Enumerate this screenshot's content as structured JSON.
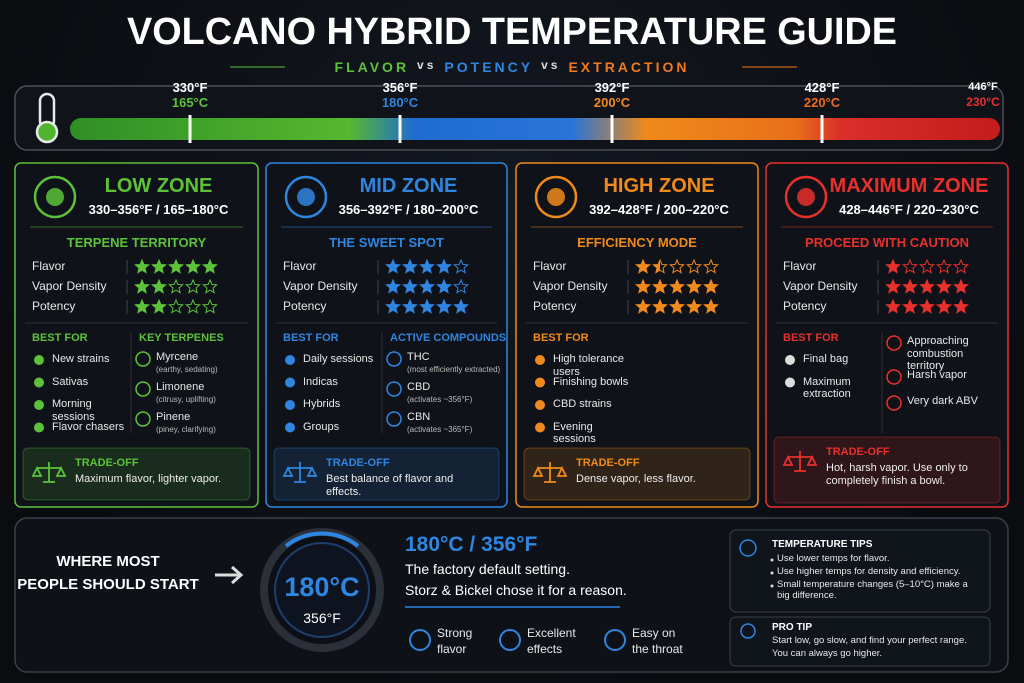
{
  "header": {
    "title": "VOLCANO HYBRID TEMPERATURE GUIDE",
    "subtitle": [
      "FLAVOR",
      "vs",
      "POTENCY",
      "vs",
      "EXTRACTION"
    ]
  },
  "scale": [
    {
      "f": "330°F",
      "c": "165°C"
    },
    {
      "f": "356°F",
      "c": "180°C"
    },
    {
      "f": "392°F",
      "c": "200°C"
    },
    {
      "f": "428°F",
      "c": "220°C"
    },
    {
      "f": "446°F",
      "c": "230°C"
    }
  ],
  "zones": [
    {
      "name": "LOW ZONE",
      "range": "330–356°F / 165–180°C",
      "tagline": "TERPENE TERRITORY",
      "color": "#5cc23a",
      "ratings": [
        {
          "label": "Flavor",
          "stars": 5
        },
        {
          "label": "Vapor Density",
          "stars": 2
        },
        {
          "label": "Potency",
          "stars": 2
        }
      ],
      "best_for_title": "BEST FOR",
      "best_for": [
        "New strains",
        "Sativas",
        "Morning sessions",
        "Flavor chasers"
      ],
      "second_title": "KEY TERPENES",
      "second": [
        {
          "name": "Myrcene",
          "note": "(earthy, sedating)"
        },
        {
          "name": "Limonene",
          "note": "(citrusy, uplifting)"
        },
        {
          "name": "Pinene",
          "note": "(piney, clarifying)"
        }
      ],
      "tradeoff_title": "TRADE-OFF",
      "tradeoff": "Maximum flavor, lighter vapor."
    },
    {
      "name": "MID ZONE",
      "range": "356–392°F / 180–200°C",
      "tagline": "THE SWEET SPOT",
      "color": "#2f86e0",
      "ratings": [
        {
          "label": "Flavor",
          "stars": 4
        },
        {
          "label": "Vapor Density",
          "stars": 4
        },
        {
          "label": "Potency",
          "stars": 5
        }
      ],
      "best_for_title": "BEST FOR",
      "best_for": [
        "Daily sessions",
        "Indicas",
        "Hybrids",
        "Groups"
      ],
      "second_title": "ACTIVE COMPOUNDS",
      "second": [
        {
          "name": "THC",
          "note": "(most efficiently extracted)"
        },
        {
          "name": "CBD",
          "note": "(activates ~356°F)"
        },
        {
          "name": "CBN",
          "note": "(activates ~365°F)"
        }
      ],
      "tradeoff_title": "TRADE-OFF",
      "tradeoff": "Best balance of flavor and effects."
    },
    {
      "name": "HIGH ZONE",
      "range": "392–428°F / 200–220°C",
      "tagline": "EFFICIENCY MODE",
      "color": "#f08a1c",
      "ratings": [
        {
          "label": "Flavor",
          "stars": 1.5
        },
        {
          "label": "Vapor Density",
          "stars": 5
        },
        {
          "label": "Potency",
          "stars": 5
        }
      ],
      "best_for_title": "BEST FOR",
      "best_for": [
        "High tolerance users",
        "Finishing bowls",
        "CBD strains",
        "Evening sessions"
      ],
      "tradeoff_title": "TRADE-OFF",
      "tradeoff": "Dense vapor, less flavor."
    },
    {
      "name": "MAXIMUM ZONE",
      "range": "428–446°F / 220–230°C",
      "tagline": "PROCEED WITH CAUTION",
      "color": "#e8302c",
      "ratings": [
        {
          "label": "Flavor",
          "stars": 1
        },
        {
          "label": "Vapor Density",
          "stars": 5
        },
        {
          "label": "Potency",
          "stars": 5
        }
      ],
      "best_for_title": "BEST FOR",
      "best_for": [
        "Final bag",
        "Maximum extraction"
      ],
      "second": [
        {
          "name": "Approaching combustion territory"
        },
        {
          "name": "Harsh vapor"
        },
        {
          "name": "Very dark ABV"
        }
      ],
      "tradeoff_title": "TRADE-OFF",
      "tradeoff": "Hot, harsh vapor. Use only to completely finish a bowl."
    }
  ],
  "start": {
    "lines": [
      "WHERE MOST",
      "PEOPLE SHOULD START"
    ],
    "gauge_c": "180°C",
    "gauge_f": "356°F",
    "heading": "180°C / 356°F",
    "text": [
      "The factory default setting.",
      "Storz & Bickel chose it for a reason."
    ],
    "features": [
      [
        "Strong",
        "flavor"
      ],
      [
        "Excellent",
        "effects"
      ],
      [
        "Easy on",
        "the throat"
      ]
    ]
  },
  "tips": {
    "title": "TEMPERATURE TIPS",
    "items": [
      "Use lower temps for flavor.",
      "Use higher temps for density and efficiency.",
      "Small temperature changes (5–10°C) make a big difference."
    ],
    "pro_title": "PRO TIP",
    "pro": [
      "Start low, go slow, and find your perfect range.",
      "You can always go higher."
    ]
  }
}
